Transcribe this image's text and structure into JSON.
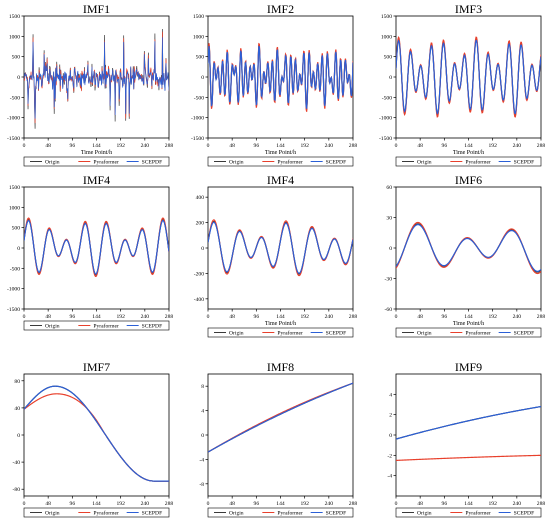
{
  "figure": {
    "legend_labels": [
      "Origin",
      "Pyraformer",
      "SCEPDF"
    ],
    "colors": {
      "Origin": "#3a3a3a",
      "Pyraformer": "#e8402c",
      "SCEPDF": "#2b5fd6"
    }
  },
  "chart_data": [
    {
      "type": "line",
      "title": "IMF1",
      "xlabel": "Time Point/h",
      "ylabel": "",
      "xlim": [
        0,
        288
      ],
      "ylim": [
        -1500,
        1500
      ],
      "xticks": [
        0,
        48,
        96,
        144,
        192,
        240,
        288
      ],
      "yticks": [
        -1500,
        -1000,
        -500,
        0,
        500,
        1000,
        1500
      ],
      "pattern": {
        "kind": "noise",
        "amp": 420,
        "spikes": 650,
        "seed": 7
      }
    },
    {
      "type": "line",
      "title": "IMF2",
      "xlabel": "Time Point/h",
      "ylabel": "",
      "xlim": [
        0,
        288
      ],
      "ylim": [
        -1500,
        1500
      ],
      "xticks": [
        0,
        48,
        96,
        144,
        192,
        240,
        288
      ],
      "yticks": [
        -1500,
        -1000,
        -500,
        0,
        500,
        1000,
        1500
      ],
      "pattern": {
        "kind": "osc",
        "periods": [
          9,
          12.5,
          17
        ],
        "amps": [
          380,
          260,
          180
        ],
        "base": 0
      }
    },
    {
      "type": "line",
      "title": "IMF3",
      "xlabel": "Time Point/h",
      "ylabel": "",
      "xlim": [
        0,
        288
      ],
      "ylim": [
        -1500,
        1500
      ],
      "xticks": [
        0,
        48,
        96,
        144,
        192,
        240,
        288
      ],
      "yticks": [
        -1500,
        -1000,
        -500,
        0,
        500,
        1000,
        1500
      ],
      "pattern": {
        "kind": "osc",
        "periods": [
          22,
          31
        ],
        "amps": [
          600,
          330
        ],
        "base": 0
      }
    },
    {
      "type": "line",
      "title": "IMF4",
      "xlabel": "",
      "ylabel": "",
      "xlim": [
        0,
        288
      ],
      "ylim": [
        -1500,
        1500
      ],
      "xticks": [
        0,
        48,
        96,
        144,
        192,
        240,
        288
      ],
      "yticks": [
        -1500,
        -1000,
        -500,
        0,
        500,
        1000,
        1500
      ],
      "pattern": {
        "kind": "osc",
        "periods": [
          38,
          54
        ],
        "amps": [
          420,
          260
        ],
        "base": 20
      }
    },
    {
      "type": "line",
      "title": "IMF4",
      "xlabel": "Time Point/h",
      "ylabel": "",
      "xlim": [
        0,
        288
      ],
      "ylim": [
        -480,
        480
      ],
      "xticks": [
        0,
        48,
        96,
        144,
        192,
        240,
        288
      ],
      "yticks": [
        -400,
        -200,
        0,
        200,
        400
      ],
      "pattern": {
        "kind": "osc",
        "periods": [
          48,
          70
        ],
        "amps": [
          140,
          70
        ],
        "base": 0
      }
    },
    {
      "type": "line",
      "title": "IMF6",
      "xlabel": "Time Point/h",
      "ylabel": "",
      "xlim": [
        0,
        288
      ],
      "ylim": [
        -60,
        60
      ],
      "xticks": [
        0,
        48,
        96,
        144,
        192,
        240,
        288
      ],
      "yticks": [
        -60,
        -30,
        0,
        30,
        60
      ],
      "pattern": {
        "kind": "osc",
        "periods": [
          96,
          150
        ],
        "amps": [
          16,
          8
        ],
        "base": 0,
        "phase": -1.2
      }
    },
    {
      "type": "line",
      "title": "IMF7",
      "xlabel": "",
      "ylabel": "",
      "xlim": [
        0,
        288
      ],
      "ylim": [
        -90,
        90
      ],
      "xticks": [
        0,
        48,
        96,
        144,
        192,
        240,
        288
      ],
      "yticks": [
        -80,
        -40,
        0,
        40,
        80
      ],
      "pattern": {
        "kind": "hump",
        "start": 38,
        "peak": 72,
        "peak_x": 62,
        "end": -68,
        "pyra_peak": 60
      }
    },
    {
      "type": "line",
      "title": "IMF8",
      "xlabel": "",
      "ylabel": "",
      "xlim": [
        0,
        288
      ],
      "ylim": [
        -10,
        10
      ],
      "xticks": [
        0,
        48,
        96,
        144,
        192,
        240,
        288
      ],
      "yticks": [
        -8,
        -4,
        0,
        4,
        8
      ],
      "pattern": {
        "kind": "rise",
        "start": -2.8,
        "end": 8.5,
        "curve": 0.8
      }
    },
    {
      "type": "line",
      "title": "IMF9",
      "xlabel": "",
      "ylabel": "",
      "xlim": [
        0,
        288
      ],
      "ylim": [
        -6,
        6
      ],
      "xticks": [
        0,
        48,
        96,
        144,
        192,
        240,
        288
      ],
      "yticks": [
        -4,
        -2,
        0,
        2,
        4
      ],
      "pattern": {
        "kind": "split",
        "origin_start": -0.4,
        "origin_end": 2.8,
        "pyra_start": -2.5,
        "pyra_end": -2.0
      }
    }
  ]
}
